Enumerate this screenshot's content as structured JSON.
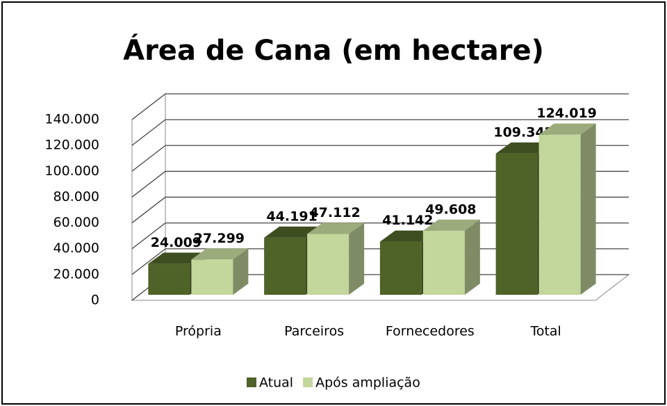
{
  "chart_data": {
    "type": "bar3d",
    "title": "Área de Cana (em hectare)",
    "categories": [
      "Própria",
      "Parceiros",
      "Fornecedores",
      "Total"
    ],
    "series": [
      {
        "name": "Atual",
        "color": "#4f6228",
        "values": [
          24009,
          44191,
          41142,
          109342
        ],
        "value_labels": [
          "24.009",
          "44.191",
          "41.142",
          "109.342"
        ]
      },
      {
        "name": "Após ampliação",
        "color": "#c3d69b",
        "values": [
          27299,
          47112,
          49608,
          124019
        ],
        "value_labels": [
          "27.299",
          "47.112",
          "49.608",
          "124.019"
        ]
      }
    ],
    "ylim": [
      0,
      140000
    ],
    "yticks": [
      0,
      {
        "value": 20000,
        "label": "20.000"
      },
      {
        "value": 40000,
        "label": "40.000"
      },
      {
        "value": 60000,
        "label": "60.000"
      },
      {
        "value": 80000,
        "label": "80.000"
      },
      {
        "value": 100000,
        "label": "100.000"
      },
      {
        "value": 120000,
        "label": "120.000"
      },
      {
        "value": 140000,
        "label": "140.000"
      }
    ],
    "grid": true,
    "legend": "bottom"
  }
}
